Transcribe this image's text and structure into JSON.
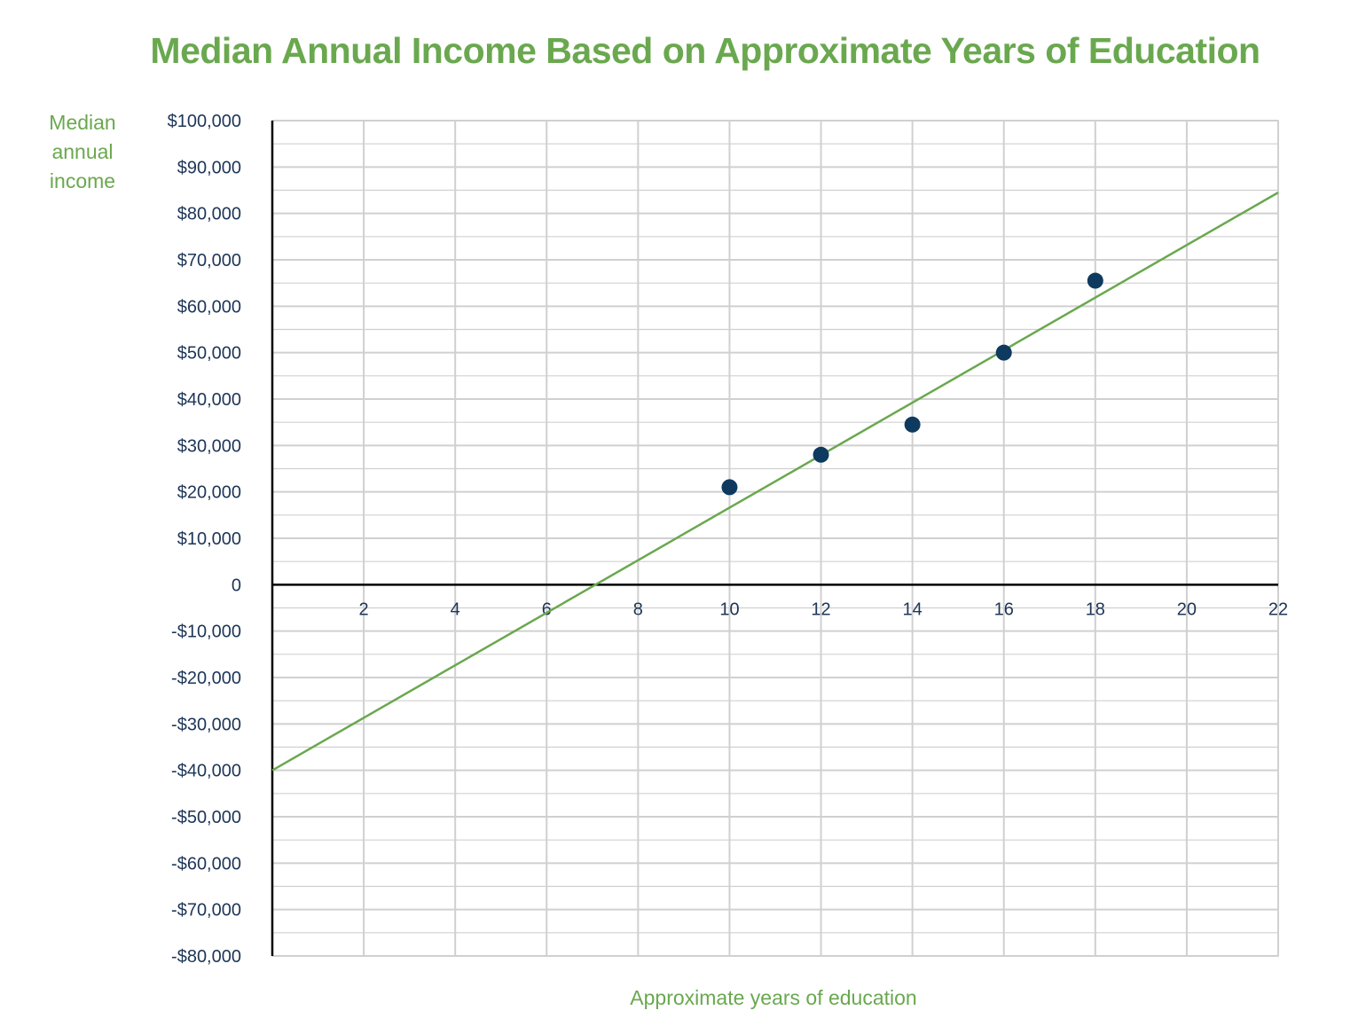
{
  "chart_data": {
    "type": "scatter",
    "title": "Median Annual Income Based on Approximate Years of Education",
    "xlabel": "Approximate years of education",
    "ylabel_lines": [
      "Median",
      "annual",
      "income"
    ],
    "xlim": [
      0,
      22
    ],
    "ylim": [
      -80000,
      100000
    ],
    "x_ticks": [
      2,
      4,
      6,
      8,
      10,
      12,
      14,
      16,
      18,
      20,
      22
    ],
    "x_tick_labels": [
      "2",
      "4",
      "6",
      "8",
      "10",
      "12",
      "14",
      "16",
      "18",
      "20",
      "22"
    ],
    "y_ticks": [
      100000,
      90000,
      80000,
      70000,
      60000,
      50000,
      40000,
      30000,
      20000,
      10000,
      0,
      -10000,
      -20000,
      -30000,
      -40000,
      -50000,
      -60000,
      -70000,
      -80000
    ],
    "y_tick_labels": [
      "$100,000",
      "$90,000",
      "$80,000",
      "$70,000",
      "$60,000",
      "$50,000",
      "$40,000",
      "$30,000",
      "$20,000",
      "$10,000",
      "0",
      "-$10,000",
      "-$20,000",
      "-$30,000",
      "-$40,000",
      "-$50,000",
      "-$60,000",
      "-$70,000",
      "-$80,000"
    ],
    "grid": true,
    "points": [
      {
        "x": 10,
        "y": 21000
      },
      {
        "x": 12,
        "y": 28000
      },
      {
        "x": 14,
        "y": 34500
      },
      {
        "x": 16,
        "y": 50000
      },
      {
        "x": 18,
        "y": 65500
      }
    ],
    "trend_line": {
      "x": [
        0,
        22
      ],
      "y": [
        -40000,
        84500
      ]
    },
    "colors": {
      "title": "#6aa84f",
      "trend_line": "#6aa84f",
      "points": "#0e3a5f",
      "tick_labels": "#1d3557",
      "grid": "#d0d0d0",
      "axis": "#000000"
    }
  }
}
